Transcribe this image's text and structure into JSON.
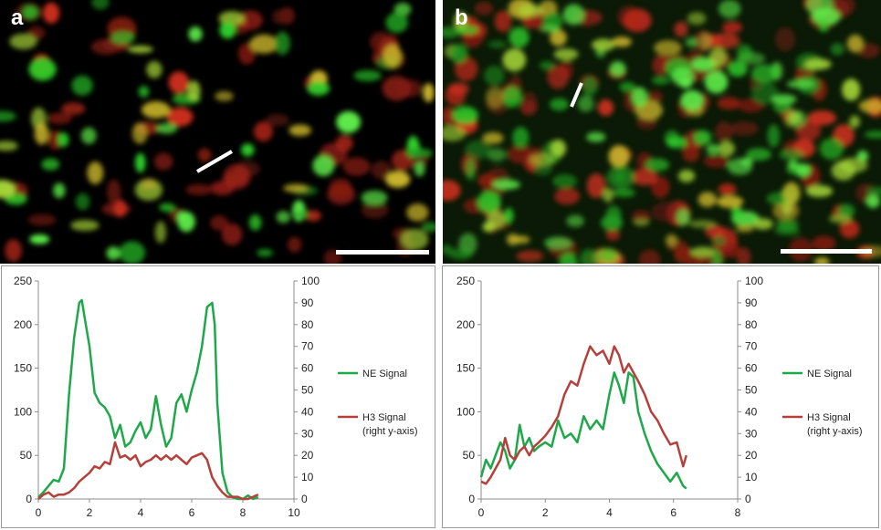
{
  "panels": [
    {
      "label": "a"
    },
    {
      "label": "b"
    }
  ],
  "colors": {
    "ne": "#1fa84a",
    "h3": "#b5403b",
    "micro_bg_a": "#000000",
    "micro_bg_b": "#0a1a06"
  },
  "chart_data": [
    {
      "type": "line",
      "title": "",
      "xlabel": "",
      "ylabel": "",
      "xlim": [
        0,
        10
      ],
      "xticks": [
        0,
        2,
        4,
        6,
        8,
        10
      ],
      "ylim": [
        0,
        250
      ],
      "yticks": [
        0,
        50,
        100,
        150,
        200,
        250
      ],
      "y2lim": [
        0,
        100
      ],
      "y2ticks": [
        0,
        10,
        20,
        30,
        40,
        50,
        60,
        70,
        80,
        90,
        100
      ],
      "legend_position": "right",
      "series": [
        {
          "name": "NE Signal",
          "axis": "left",
          "x": [
            0,
            0.2,
            0.4,
            0.6,
            0.8,
            1.0,
            1.2,
            1.4,
            1.6,
            1.7,
            1.8,
            2.0,
            2.2,
            2.4,
            2.6,
            2.8,
            3.0,
            3.2,
            3.4,
            3.6,
            3.8,
            4.0,
            4.2,
            4.4,
            4.6,
            4.8,
            5.0,
            5.2,
            5.4,
            5.6,
            5.8,
            6.0,
            6.2,
            6.4,
            6.6,
            6.8,
            6.9,
            7.0,
            7.2,
            7.4,
            7.6,
            7.8,
            8.0,
            8.2,
            8.4,
            8.6
          ],
          "y": [
            2,
            8,
            15,
            22,
            20,
            35,
            120,
            185,
            225,
            228,
            210,
            175,
            122,
            110,
            105,
            95,
            70,
            85,
            60,
            65,
            78,
            88,
            70,
            80,
            118,
            85,
            60,
            70,
            110,
            120,
            100,
            125,
            145,
            175,
            220,
            225,
            200,
            110,
            30,
            8,
            2,
            0,
            0,
            4,
            0,
            2
          ]
        },
        {
          "name": "H3 Signal\n(right y-axis)",
          "axis": "right",
          "x": [
            0,
            0.2,
            0.4,
            0.6,
            0.8,
            1.0,
            1.2,
            1.4,
            1.6,
            1.8,
            2.0,
            2.2,
            2.4,
            2.6,
            2.8,
            3.0,
            3.2,
            3.4,
            3.6,
            3.8,
            4.0,
            4.2,
            4.4,
            4.6,
            4.8,
            5.0,
            5.2,
            5.4,
            5.6,
            5.8,
            6.0,
            6.2,
            6.4,
            6.6,
            6.8,
            7.0,
            7.2,
            7.4,
            7.6,
            7.8,
            8.0,
            8.2,
            8.4,
            8.6
          ],
          "y": [
            0,
            2,
            3,
            1,
            2,
            2,
            3,
            5,
            8,
            10,
            12,
            15,
            14,
            17,
            16,
            26,
            19,
            20,
            18,
            20,
            15,
            17,
            18,
            20,
            18,
            20,
            18,
            20,
            18,
            16,
            19,
            20,
            21,
            18,
            10,
            6,
            3,
            1,
            1,
            1,
            0,
            0,
            1,
            2
          ]
        }
      ]
    },
    {
      "type": "line",
      "title": "",
      "xlabel": "",
      "ylabel": "",
      "xlim": [
        0,
        8
      ],
      "xticks": [
        0,
        2,
        4,
        6,
        8
      ],
      "ylim": [
        0,
        250
      ],
      "yticks": [
        0,
        50,
        100,
        150,
        200,
        250
      ],
      "y2lim": [
        0,
        100
      ],
      "y2ticks": [
        0,
        10,
        20,
        30,
        40,
        50,
        60,
        70,
        80,
        90,
        100
      ],
      "legend_position": "right",
      "series": [
        {
          "name": "NE Signal",
          "axis": "left",
          "x": [
            0,
            0.15,
            0.3,
            0.45,
            0.6,
            0.75,
            0.9,
            1.05,
            1.2,
            1.35,
            1.5,
            1.65,
            1.8,
            2.0,
            2.2,
            2.4,
            2.6,
            2.8,
            3.0,
            3.2,
            3.4,
            3.6,
            3.8,
            4.0,
            4.15,
            4.3,
            4.45,
            4.6,
            4.75,
            4.9,
            5.1,
            5.3,
            5.5,
            5.7,
            5.9,
            6.1,
            6.3,
            6.4
          ],
          "y": [
            25,
            45,
            35,
            50,
            65,
            55,
            35,
            45,
            85,
            60,
            70,
            55,
            60,
            65,
            60,
            90,
            70,
            75,
            65,
            95,
            80,
            90,
            80,
            120,
            145,
            130,
            110,
            145,
            140,
            100,
            75,
            55,
            40,
            30,
            20,
            30,
            15,
            12
          ]
        },
        {
          "name": "H3 Signal\n(right y-axis)",
          "axis": "right",
          "x": [
            0,
            0.15,
            0.3,
            0.45,
            0.6,
            0.75,
            0.9,
            1.05,
            1.2,
            1.35,
            1.5,
            1.65,
            1.8,
            2.0,
            2.2,
            2.4,
            2.6,
            2.8,
            3.0,
            3.2,
            3.4,
            3.6,
            3.8,
            4.0,
            4.15,
            4.3,
            4.45,
            4.6,
            4.75,
            4.9,
            5.1,
            5.3,
            5.5,
            5.7,
            5.9,
            6.1,
            6.3,
            6.4
          ],
          "y": [
            8,
            7,
            10,
            14,
            18,
            28,
            20,
            18,
            22,
            24,
            20,
            24,
            26,
            29,
            33,
            38,
            48,
            54,
            52,
            62,
            70,
            66,
            68,
            62,
            70,
            66,
            58,
            62,
            58,
            54,
            48,
            40,
            36,
            30,
            25,
            26,
            15,
            20
          ]
        }
      ]
    }
  ]
}
